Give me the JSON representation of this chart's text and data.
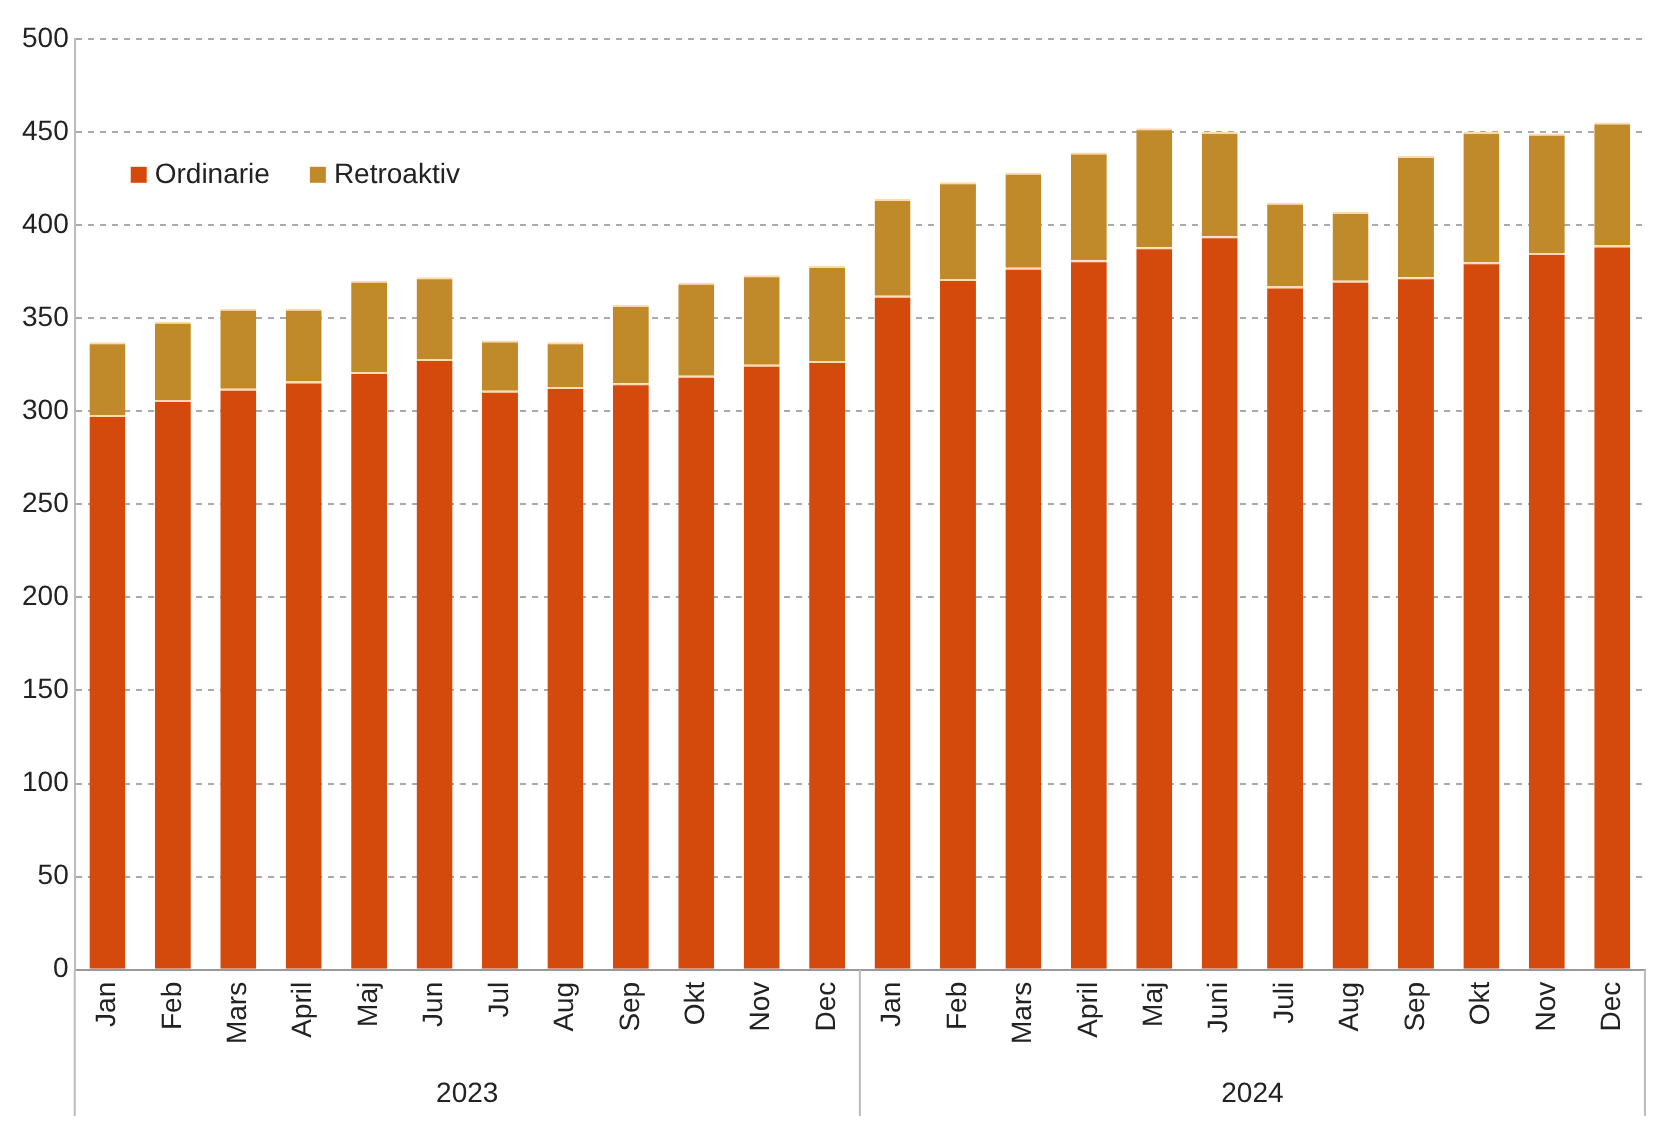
{
  "chart_data": {
    "type": "bar",
    "stacked": true,
    "categories": [
      "Jan",
      "Feb",
      "Mars",
      "April",
      "Maj",
      "Jun",
      "Jul",
      "Aug",
      "Sep",
      "Okt",
      "Nov",
      "Dec",
      "Jan",
      "Feb",
      "Mars",
      "April",
      "Maj",
      "Juni",
      "Juli",
      "Aug",
      "Sep",
      "Okt",
      "Nov",
      "Dec"
    ],
    "series": [
      {
        "name": "Ordinarie",
        "color": "#d44a0c",
        "values": [
          298,
          306,
          312,
          316,
          321,
          328,
          311,
          313,
          315,
          319,
          325,
          327,
          362,
          371,
          377,
          381,
          388,
          394,
          367,
          370,
          372,
          380,
          385,
          389
        ]
      },
      {
        "name": "Retroaktiv",
        "color": "#c08a2a",
        "values": [
          39,
          42,
          43,
          39,
          49,
          44,
          27,
          24,
          42,
          50,
          48,
          51,
          52,
          52,
          51,
          58,
          64,
          56,
          45,
          37,
          65,
          70,
          64,
          66
        ]
      }
    ],
    "annotations": [
      "2023",
      "2024"
    ],
    "ylim": [
      0,
      500
    ],
    "yticks": [
      0,
      50,
      100,
      150,
      200,
      250,
      300,
      350,
      400,
      450,
      500
    ],
    "grid": "y",
    "legend": "top left"
  }
}
